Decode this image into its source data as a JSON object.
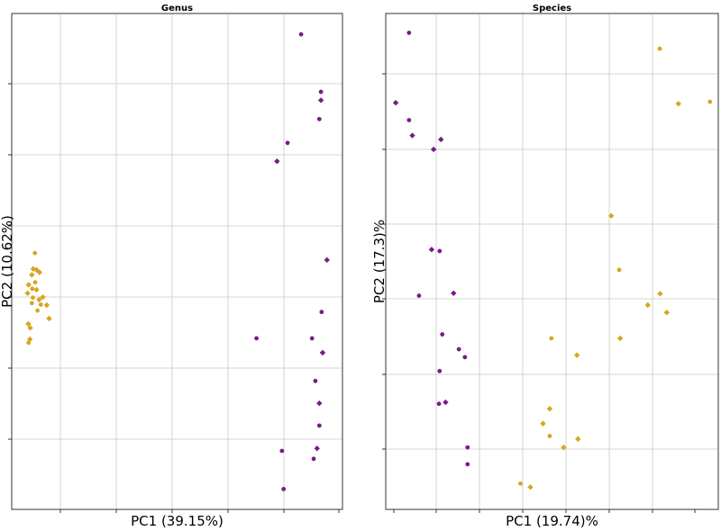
{
  "chart_data": [
    {
      "type": "scatter",
      "title": "Genus",
      "xlabel": "PC1 (39.15%)",
      "ylabel": "PC2 (10.62%)",
      "xlim": [
        0,
        100
      ],
      "ylim": [
        0,
        100
      ],
      "grid": true,
      "series": [
        {
          "color": "#d9a520",
          "points": [
            [
              7,
              51.7
            ],
            [
              6.5,
              48.5
            ],
            [
              7.5,
              48.3
            ],
            [
              8.4,
              47.8
            ],
            [
              6.1,
              47.3
            ],
            [
              7.1,
              45.8
            ],
            [
              5.1,
              45.3
            ],
            [
              6.2,
              44.5
            ],
            [
              7.5,
              44.3
            ],
            [
              4.8,
              43.6
            ],
            [
              6.4,
              42.7
            ],
            [
              8.3,
              42.3
            ],
            [
              9.4,
              42.8
            ],
            [
              6.1,
              41.6
            ],
            [
              8.8,
              41.3
            ],
            [
              10.6,
              41.2
            ],
            [
              7.8,
              40.1
            ],
            [
              11.3,
              38.5
            ],
            [
              5,
              37.4
            ],
            [
              5.6,
              36.6
            ],
            [
              5.5,
              34.3
            ],
            [
              5.1,
              33.6
            ]
          ]
        },
        {
          "color": "#7b1a8c",
          "points": [
            [
              87.5,
              95.8
            ],
            [
              93.5,
              84.2
            ],
            [
              93.5,
              82.5
            ],
            [
              93,
              78.7
            ],
            [
              83.4,
              73.9
            ],
            [
              80.2,
              70.2
            ],
            [
              95.3,
              50.3
            ],
            [
              93.7,
              39.8
            ],
            [
              74,
              34.5
            ],
            [
              90.8,
              34.5
            ],
            [
              94,
              31.6
            ],
            [
              91.8,
              25.9
            ],
            [
              93,
              21.4
            ],
            [
              93,
              16.9
            ],
            [
              81.7,
              11.8
            ],
            [
              92.3,
              12.3
            ],
            [
              91.3,
              10.2
            ],
            [
              82.2,
              4.1
            ]
          ]
        }
      ]
    },
    {
      "type": "scatter",
      "title": "Species",
      "xlabel": "PC1 (19.74)%",
      "ylabel": "PC2 (17.3)%",
      "xlim": [
        0,
        100
      ],
      "ylim": [
        0,
        100
      ],
      "grid": true,
      "series": [
        {
          "color": "#d9a520",
          "points": [
            [
              82.4,
              92.9
            ],
            [
              88,
              81.8
            ],
            [
              97.5,
              82.2
            ],
            [
              67.8,
              59.2
            ],
            [
              70.2,
              48.3
            ],
            [
              82.5,
              43.5
            ],
            [
              78.8,
              41.2
            ],
            [
              84.5,
              39.7
            ],
            [
              49.8,
              34.5
            ],
            [
              70.5,
              34.5
            ],
            [
              57.5,
              31.1
            ],
            [
              49.3,
              20.3
            ],
            [
              47.3,
              17.3
            ],
            [
              49.3,
              14.8
            ],
            [
              57.8,
              14.2
            ],
            [
              53.5,
              12.5
            ],
            [
              40.5,
              5.2
            ],
            [
              43.5,
              4.5
            ]
          ]
        },
        {
          "color": "#7b1a8c",
          "points": [
            [
              7,
              96.1
            ],
            [
              3,
              82
            ],
            [
              7,
              78.5
            ],
            [
              8,
              75.4
            ],
            [
              16.6,
              74.6
            ],
            [
              14.4,
              72.6
            ],
            [
              13.8,
              52.4
            ],
            [
              16.2,
              52.1
            ],
            [
              10,
              43.1
            ],
            [
              20.4,
              43.6
            ],
            [
              17,
              35.3
            ],
            [
              22,
              32.3
            ],
            [
              23.8,
              30.7
            ],
            [
              16.2,
              27.9
            ],
            [
              16,
              21.3
            ],
            [
              18,
              21.6
            ],
            [
              24.6,
              12.5
            ],
            [
              24.6,
              9.1
            ]
          ]
        }
      ]
    }
  ]
}
